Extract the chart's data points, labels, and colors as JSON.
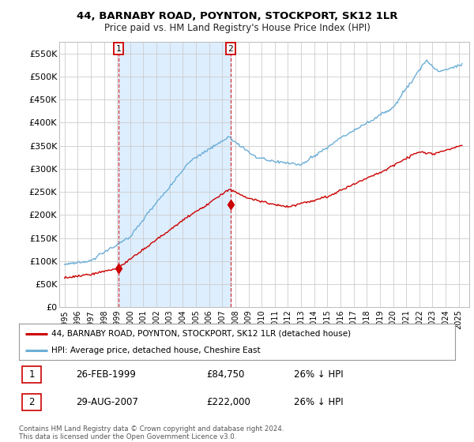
{
  "title": "44, BARNABY ROAD, POYNTON, STOCKPORT, SK12 1LR",
  "subtitle": "Price paid vs. HM Land Registry's House Price Index (HPI)",
  "ylim": [
    0,
    575000
  ],
  "yticks": [
    0,
    50000,
    100000,
    150000,
    200000,
    250000,
    300000,
    350000,
    400000,
    450000,
    500000,
    550000
  ],
  "ytick_labels": [
    "£0",
    "£50K",
    "£100K",
    "£150K",
    "£200K",
    "£250K",
    "£300K",
    "£350K",
    "£400K",
    "£450K",
    "£500K",
    "£550K"
  ],
  "hpi_color": "#6baed6",
  "price_color": "#cc0000",
  "marker1_year": 1999.12,
  "marker1_price": 84750,
  "marker2_year": 2007.64,
  "marker2_price": 222000,
  "shade_color": "#ddeeff",
  "legend_label1": "44, BARNABY ROAD, POYNTON, STOCKPORT, SK12 1LR (detached house)",
  "legend_label2": "HPI: Average price, detached house, Cheshire East",
  "table_row1": [
    "1",
    "26-FEB-1999",
    "£84,750",
    "26% ↓ HPI"
  ],
  "table_row2": [
    "2",
    "29-AUG-2007",
    "£222,000",
    "26% ↓ HPI"
  ],
  "footer": "Contains HM Land Registry data © Crown copyright and database right 2024.\nThis data is licensed under the Open Government Licence v3.0.",
  "bg_color": "#ffffff",
  "grid_color": "#cccccc"
}
